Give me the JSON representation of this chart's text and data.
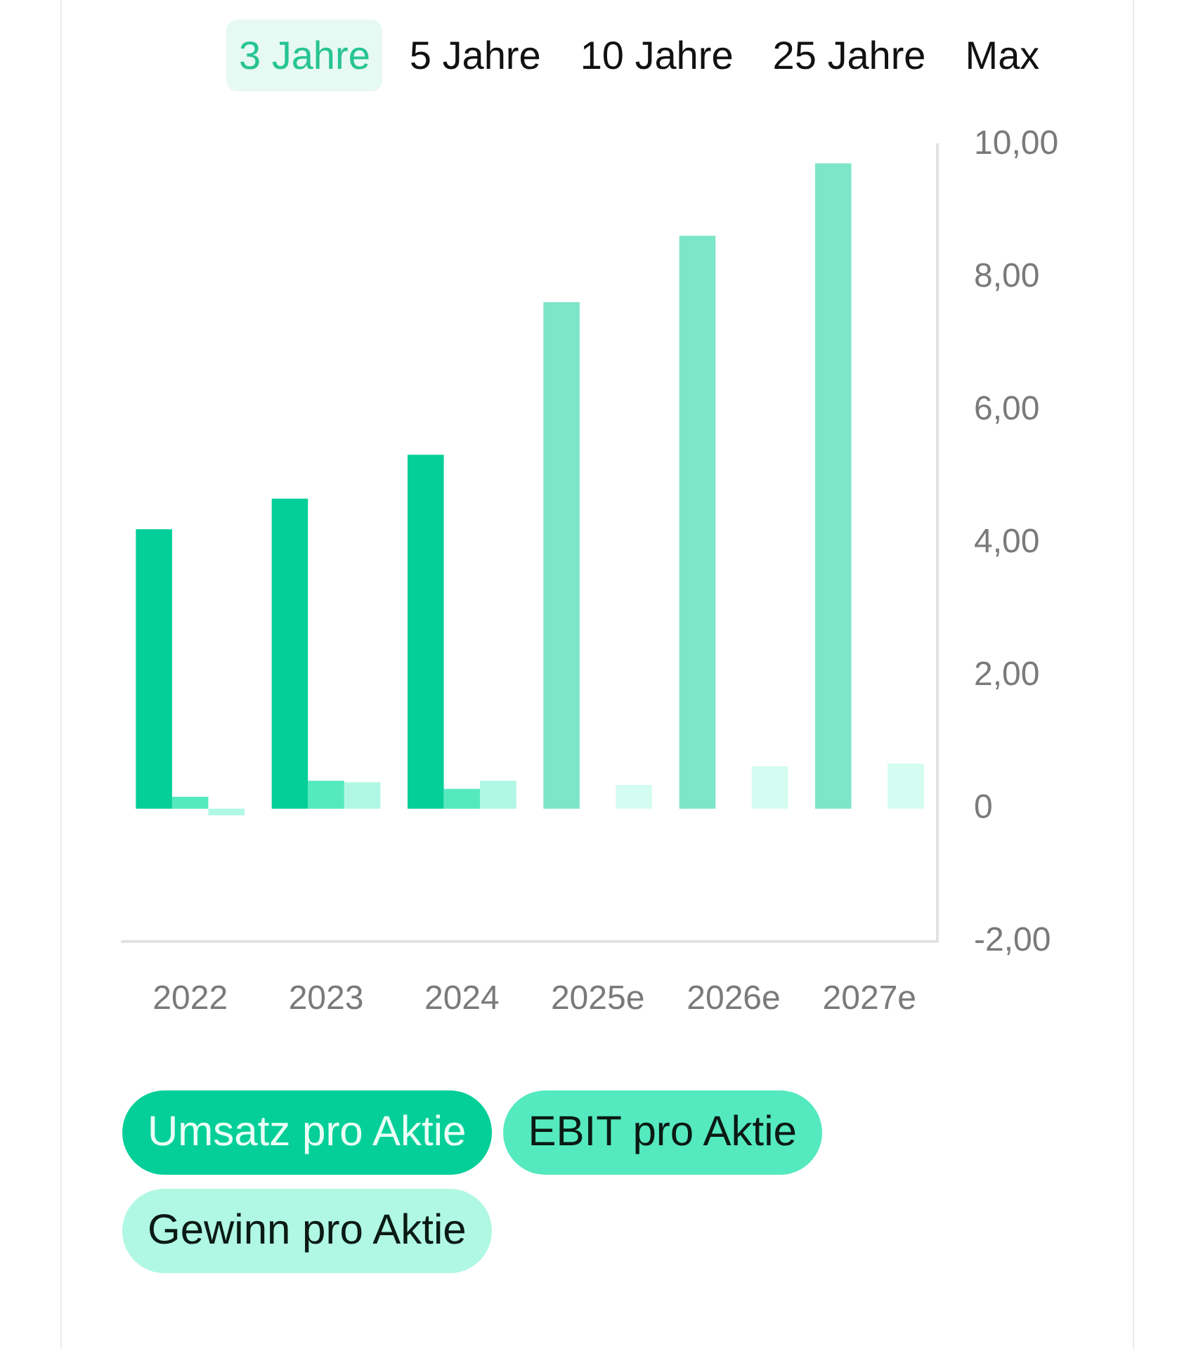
{
  "chart_data": {
    "type": "bar",
    "annotations": [
      "3 Jahre",
      "5 Jahre",
      "10 Jahre",
      "25 Jahre",
      "Max"
    ],
    "categories": [
      "2022",
      "2023",
      "2024",
      "2025e",
      "2026e",
      "2027e"
    ],
    "series": [
      {
        "name": "Umsatz pro Aktie",
        "color": "#05cf98",
        "colors": [
          "#05cf98",
          "#05cf98",
          "#05cf98",
          "#7de5c8",
          "#7de5c8",
          "#7de5c8"
        ],
        "values": [
          4.21,
          4.67,
          5.33,
          7.63,
          8.63,
          9.72
        ]
      },
      {
        "name": "EBIT pro Aktie",
        "color": "#55e9bf",
        "values": [
          0.18,
          0.42,
          0.3,
          null,
          null,
          null
        ]
      },
      {
        "name": "Gewinn pro Aktie",
        "color": "#b0f8e3",
        "colors": [
          "#b0f8e3",
          "#b0f8e3",
          "#b0f8e3",
          "#d4fcf0",
          "#d4fcf0",
          "#d4fcf0"
        ],
        "values": [
          -0.1,
          0.4,
          0.42,
          0.36,
          0.64,
          0.68
        ]
      }
    ],
    "ylim": [
      -2,
      10
    ],
    "yticks": [
      {
        "value": -2,
        "label": "-2,00"
      },
      0,
      {
        "value": 2,
        "label": "2,00"
      },
      {
        "value": 4,
        "label": "4,00"
      },
      {
        "value": 6,
        "label": "6,00"
      },
      {
        "value": 8,
        "label": "8,00"
      },
      {
        "value": 10,
        "label": "10,00"
      }
    ],
    "legend": "bottom"
  }
}
